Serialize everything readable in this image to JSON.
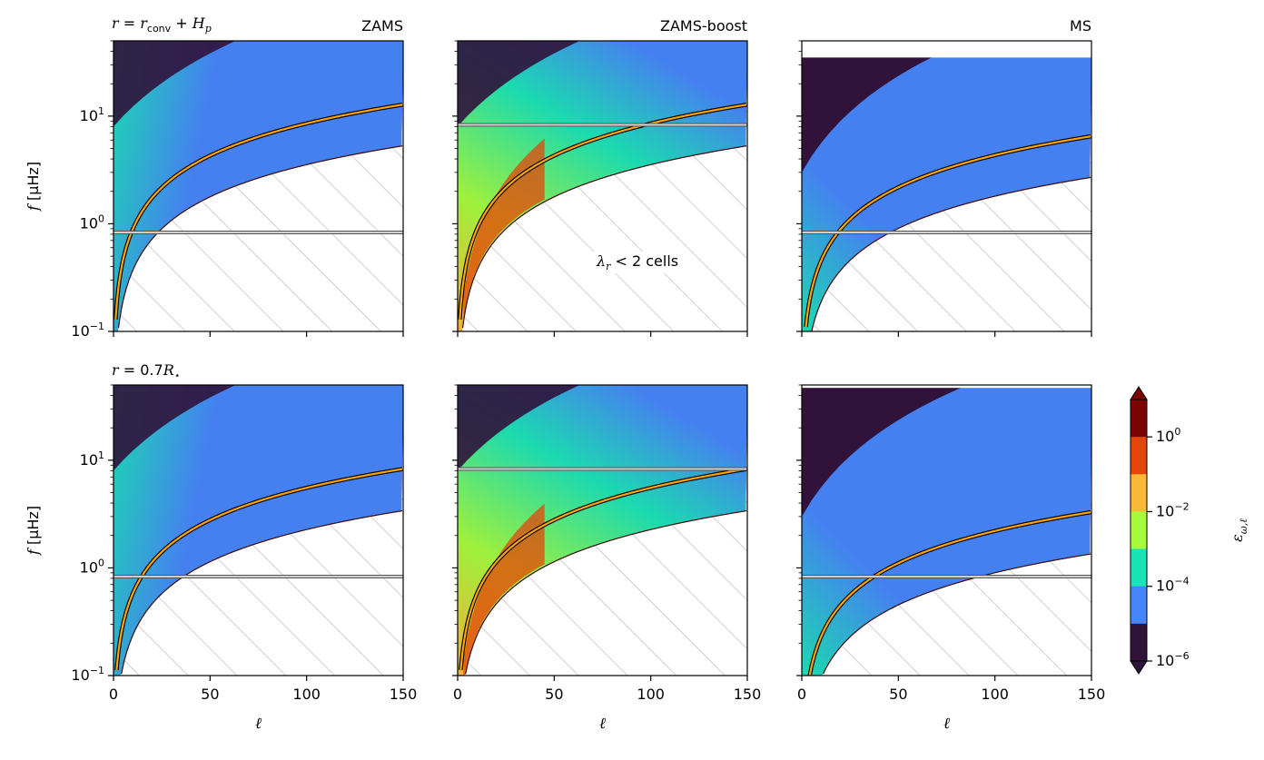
{
  "figure": {
    "row_labels": [
      {
        "var": "r",
        "eq": "=",
        "expr": "r",
        "sub": "conv",
        "plus": "+",
        "expr2": "H",
        "sub2": "p"
      },
      {
        "var": "r",
        "eq": "=",
        "expr": "0.7",
        "expr2": "R",
        "sub2": "⋆"
      }
    ],
    "column_titles": [
      "ZAMS",
      "ZAMS-boost",
      "MS"
    ],
    "annotation": {
      "sym": "λ",
      "sub": "r",
      "text": " < 2 cells"
    }
  },
  "chart_data": {
    "type": "heatmap",
    "xlabel": "ℓ",
    "ylabel_var": "f",
    "ylabel_unit": "[μHz]",
    "xlim": [
      0,
      150
    ],
    "ylim": [
      0.1,
      50
    ],
    "yscale": "log",
    "x_ticks": [
      0,
      50,
      100,
      150
    ],
    "y_ticks": [
      {
        "base": "10",
        "exp": "−1",
        "value": 0.1
      },
      {
        "base": "10",
        "exp": "0",
        "value": 1
      },
      {
        "base": "10",
        "exp": "1",
        "value": 10
      }
    ],
    "colorbar": {
      "label": "ε",
      "label_sub": "ω,ℓ",
      "tick_values": [
        {
          "base": "10",
          "exp": "0"
        },
        {
          "base": "10",
          "exp": "−2"
        },
        {
          "base": "10",
          "exp": "−4"
        },
        {
          "base": "10",
          "exp": "−6"
        }
      ],
      "levels": [
        "1e-6",
        "1e-5",
        "1e-4",
        "1e-3",
        "1e-2",
        "1e-1",
        "1e0"
      ],
      "colors": [
        "#30123b",
        "#4686fa",
        "#1ae4b6",
        "#a4fc3c",
        "#fbb938",
        "#e4460a",
        "#7a0403"
      ]
    },
    "panels": [
      {
        "row": 0,
        "col": 0,
        "lower_cutoff_at_150": 5.3,
        "orange_curve_at_150": 12.8,
        "hline": 0.83,
        "hline2": null,
        "top_white_above": null,
        "peak": "cyan-blue"
      },
      {
        "row": 0,
        "col": 1,
        "lower_cutoff_at_150": 5.3,
        "orange_curve_at_150": 12.8,
        "hline": 8.3,
        "hline2": null,
        "top_white_above": null,
        "peak": "orange-red"
      },
      {
        "row": 0,
        "col": 2,
        "lower_cutoff_at_150": 2.7,
        "orange_curve_at_150": 6.5,
        "hline": 0.83,
        "hline2": null,
        "top_white_above": 35,
        "peak": "blue"
      },
      {
        "row": 1,
        "col": 0,
        "lower_cutoff_at_150": 3.4,
        "orange_curve_at_150": 8.3,
        "hline": 0.83,
        "hline2": null,
        "top_white_above": null,
        "peak": "cyan-blue"
      },
      {
        "row": 1,
        "col": 1,
        "lower_cutoff_at_150": 3.4,
        "orange_curve_at_150": 8.3,
        "hline": 8.3,
        "hline2": null,
        "top_white_above": null,
        "peak": "orange-red"
      },
      {
        "row": 1,
        "col": 2,
        "lower_cutoff_at_150": 1.35,
        "orange_curve_at_150": 3.3,
        "hline": 0.83,
        "hline2": null,
        "top_white_above": 47,
        "peak": "blue"
      }
    ]
  }
}
